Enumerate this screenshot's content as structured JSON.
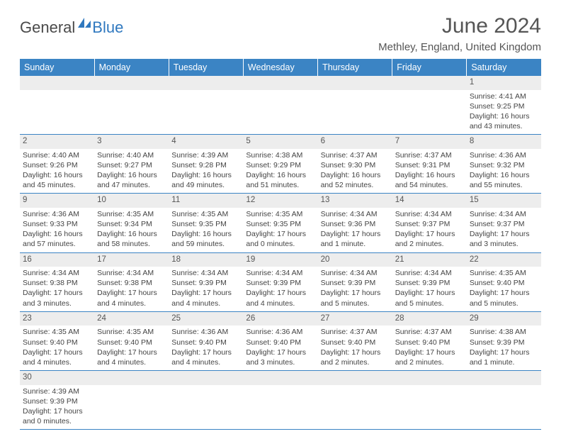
{
  "logo": {
    "text1": "General",
    "text2": "Blue"
  },
  "title": "June 2024",
  "location": "Methley, England, United Kingdom",
  "colors": {
    "header_bg": "#3b84c4",
    "header_text": "#ffffff",
    "daynum_bg": "#ededed",
    "border": "#3b84c4",
    "logo_gray": "#4a4a4a",
    "logo_blue": "#2f78bf"
  },
  "weekdays": [
    "Sunday",
    "Monday",
    "Tuesday",
    "Wednesday",
    "Thursday",
    "Friday",
    "Saturday"
  ],
  "weeks": [
    {
      "nums": [
        "",
        "",
        "",
        "",
        "",
        "",
        "1"
      ],
      "cells": [
        "",
        "",
        "",
        "",
        "",
        "",
        "Sunrise: 4:41 AM\nSunset: 9:25 PM\nDaylight: 16 hours and 43 minutes."
      ]
    },
    {
      "nums": [
        "2",
        "3",
        "4",
        "5",
        "6",
        "7",
        "8"
      ],
      "cells": [
        "Sunrise: 4:40 AM\nSunset: 9:26 PM\nDaylight: 16 hours and 45 minutes.",
        "Sunrise: 4:40 AM\nSunset: 9:27 PM\nDaylight: 16 hours and 47 minutes.",
        "Sunrise: 4:39 AM\nSunset: 9:28 PM\nDaylight: 16 hours and 49 minutes.",
        "Sunrise: 4:38 AM\nSunset: 9:29 PM\nDaylight: 16 hours and 51 minutes.",
        "Sunrise: 4:37 AM\nSunset: 9:30 PM\nDaylight: 16 hours and 52 minutes.",
        "Sunrise: 4:37 AM\nSunset: 9:31 PM\nDaylight: 16 hours and 54 minutes.",
        "Sunrise: 4:36 AM\nSunset: 9:32 PM\nDaylight: 16 hours and 55 minutes."
      ]
    },
    {
      "nums": [
        "9",
        "10",
        "11",
        "12",
        "13",
        "14",
        "15"
      ],
      "cells": [
        "Sunrise: 4:36 AM\nSunset: 9:33 PM\nDaylight: 16 hours and 57 minutes.",
        "Sunrise: 4:35 AM\nSunset: 9:34 PM\nDaylight: 16 hours and 58 minutes.",
        "Sunrise: 4:35 AM\nSunset: 9:35 PM\nDaylight: 16 hours and 59 minutes.",
        "Sunrise: 4:35 AM\nSunset: 9:35 PM\nDaylight: 17 hours and 0 minutes.",
        "Sunrise: 4:34 AM\nSunset: 9:36 PM\nDaylight: 17 hours and 1 minute.",
        "Sunrise: 4:34 AM\nSunset: 9:37 PM\nDaylight: 17 hours and 2 minutes.",
        "Sunrise: 4:34 AM\nSunset: 9:37 PM\nDaylight: 17 hours and 3 minutes."
      ]
    },
    {
      "nums": [
        "16",
        "17",
        "18",
        "19",
        "20",
        "21",
        "22"
      ],
      "cells": [
        "Sunrise: 4:34 AM\nSunset: 9:38 PM\nDaylight: 17 hours and 3 minutes.",
        "Sunrise: 4:34 AM\nSunset: 9:38 PM\nDaylight: 17 hours and 4 minutes.",
        "Sunrise: 4:34 AM\nSunset: 9:39 PM\nDaylight: 17 hours and 4 minutes.",
        "Sunrise: 4:34 AM\nSunset: 9:39 PM\nDaylight: 17 hours and 4 minutes.",
        "Sunrise: 4:34 AM\nSunset: 9:39 PM\nDaylight: 17 hours and 5 minutes.",
        "Sunrise: 4:34 AM\nSunset: 9:39 PM\nDaylight: 17 hours and 5 minutes.",
        "Sunrise: 4:35 AM\nSunset: 9:40 PM\nDaylight: 17 hours and 5 minutes."
      ]
    },
    {
      "nums": [
        "23",
        "24",
        "25",
        "26",
        "27",
        "28",
        "29"
      ],
      "cells": [
        "Sunrise: 4:35 AM\nSunset: 9:40 PM\nDaylight: 17 hours and 4 minutes.",
        "Sunrise: 4:35 AM\nSunset: 9:40 PM\nDaylight: 17 hours and 4 minutes.",
        "Sunrise: 4:36 AM\nSunset: 9:40 PM\nDaylight: 17 hours and 4 minutes.",
        "Sunrise: 4:36 AM\nSunset: 9:40 PM\nDaylight: 17 hours and 3 minutes.",
        "Sunrise: 4:37 AM\nSunset: 9:40 PM\nDaylight: 17 hours and 2 minutes.",
        "Sunrise: 4:37 AM\nSunset: 9:40 PM\nDaylight: 17 hours and 2 minutes.",
        "Sunrise: 4:38 AM\nSunset: 9:39 PM\nDaylight: 17 hours and 1 minute."
      ]
    },
    {
      "nums": [
        "30",
        "",
        "",
        "",
        "",
        "",
        ""
      ],
      "cells": [
        "Sunrise: 4:39 AM\nSunset: 9:39 PM\nDaylight: 17 hours and 0 minutes.",
        "",
        "",
        "",
        "",
        "",
        ""
      ]
    }
  ]
}
